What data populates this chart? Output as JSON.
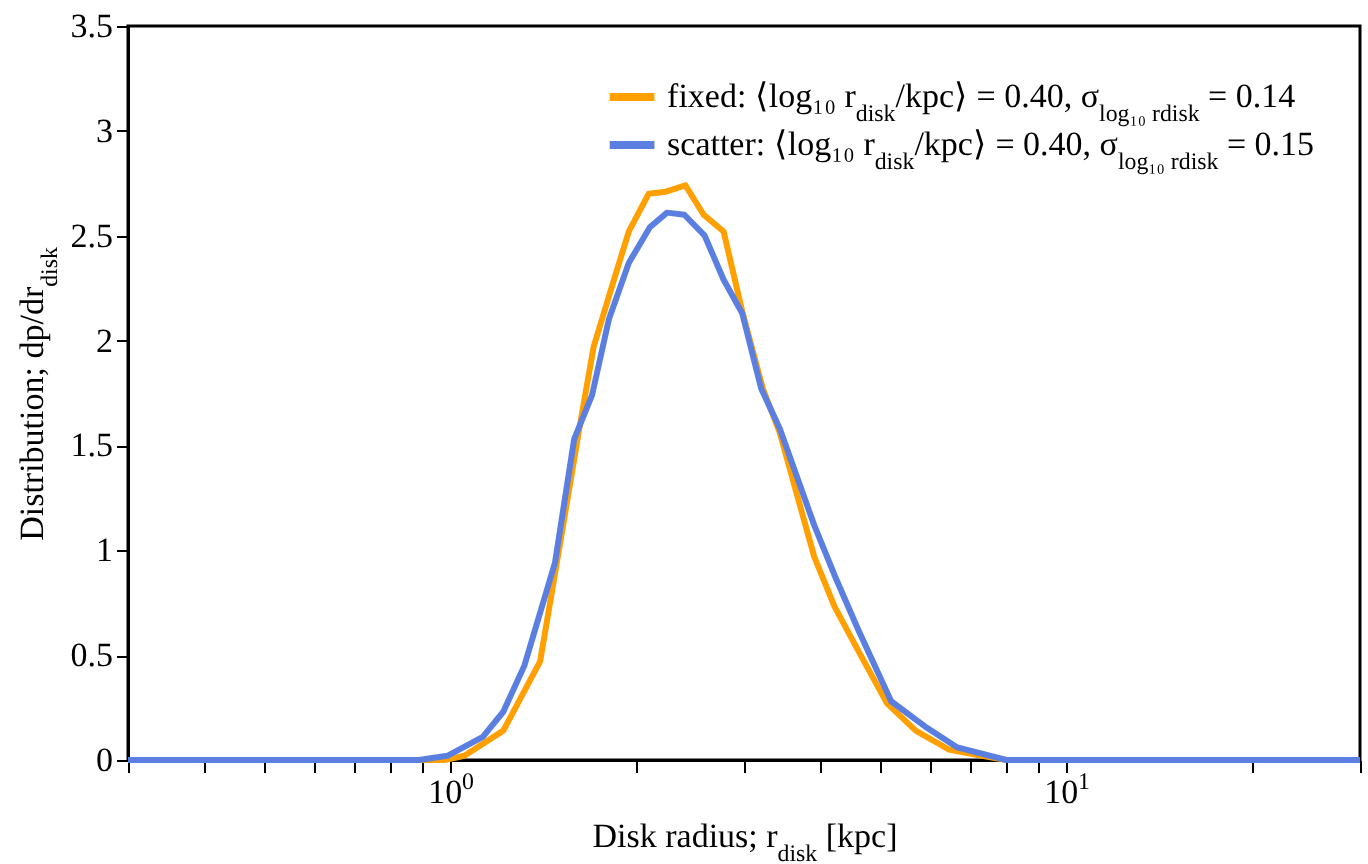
{
  "chart_data": {
    "type": "line",
    "xlabel": "Disk radius; r$_{disk}$ [kpc]",
    "ylabel": "Distribution; dp/dr$_{disk}$",
    "log": "x",
    "xlim": [
      0.3,
      30
    ],
    "ylim": [
      0,
      3.5
    ],
    "xticks": [
      {
        "value": 0.3,
        "label": null
      },
      {
        "value": 0.4,
        "label": null
      },
      {
        "value": 0.5,
        "label": null
      },
      {
        "value": 0.6,
        "label": null
      },
      {
        "value": 0.7,
        "label": null
      },
      {
        "value": 0.8,
        "label": null
      },
      {
        "value": 0.9,
        "label": null
      },
      {
        "value": 1,
        "label": "10$^{0}$"
      },
      {
        "value": 2,
        "label": null
      },
      {
        "value": 3,
        "label": null
      },
      {
        "value": 4,
        "label": null
      },
      {
        "value": 5,
        "label": null
      },
      {
        "value": 6,
        "label": null
      },
      {
        "value": 7,
        "label": null
      },
      {
        "value": 8,
        "label": null
      },
      {
        "value": 9,
        "label": null
      },
      {
        "value": 10,
        "label": "10$^{1}$"
      },
      {
        "value": 20,
        "label": null
      },
      {
        "value": 30,
        "label": null
      }
    ],
    "yticks": [
      0,
      0.5,
      1,
      1.5,
      2,
      2.5,
      3,
      3.5
    ],
    "grid": false,
    "legend": "top right",
    "line_style": "solid",
    "marker": "none",
    "series": [
      {
        "name": "fixed: ⟨log₁₀ r$_{disk}$/kpc⟩ = 0.40, σ$_{log₁₀ r}$$_{disk}$ = 0.14",
        "color": "#ffa000",
        "x": [
          0.3,
          0.9,
          0.98,
          1.055,
          1.22,
          1.4,
          1.51,
          1.61,
          1.71,
          1.81,
          1.95,
          2.1,
          2.24,
          2.41,
          2.58,
          2.78,
          2.98,
          3.22,
          3.43,
          3.9,
          4.21,
          4.6,
          5.12,
          5.7,
          6.45,
          7.3,
          8,
          30
        ],
        "values": [
          0,
          0,
          0,
          0.02,
          0.14,
          0.47,
          1.04,
          1.53,
          1.97,
          2.21,
          2.52,
          2.7,
          2.71,
          2.74,
          2.6,
          2.52,
          2.14,
          1.77,
          1.56,
          0.97,
          0.73,
          0.52,
          0.27,
          0.14,
          0.05,
          0.02,
          0,
          0
        ]
      },
      {
        "name": "scatter: ⟨log₁₀ r$_{disk}$/kpc⟩ = 0.40, σ$_{log₁₀ r}$$_{disk}$ = 0.15",
        "color": "#5b7fe0",
        "x": [
          0.3,
          0.89,
          0.99,
          1.13,
          1.22,
          1.32,
          1.48,
          1.59,
          1.7,
          1.81,
          1.95,
          2.11,
          2.25,
          2.4,
          2.59,
          2.78,
          2.98,
          3.2,
          3.43,
          3.9,
          4.21,
          4.6,
          5.2,
          5.9,
          6.66,
          8,
          30
        ],
        "values": [
          0,
          0,
          0.02,
          0.11,
          0.23,
          0.45,
          0.94,
          1.53,
          1.74,
          2.1,
          2.37,
          2.54,
          2.61,
          2.6,
          2.5,
          2.29,
          2.13,
          1.77,
          1.58,
          1.12,
          0.88,
          0.62,
          0.28,
          0.16,
          0.06,
          0,
          0
        ]
      }
    ]
  }
}
